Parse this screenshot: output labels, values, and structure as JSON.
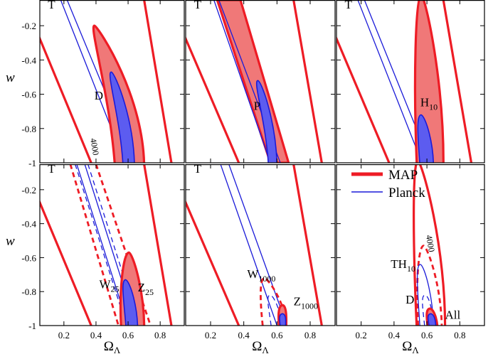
{
  "chart_data": {
    "type": "contour-grid",
    "xlabel": "Ω",
    "xlabel_sub": "Λ",
    "ylabel": "w",
    "xlim": [
      0.05,
      0.95
    ],
    "ylim": [
      -1.0,
      -0.05
    ],
    "x_ticks": [
      0.2,
      0.4,
      0.6,
      0.8
    ],
    "x_tick_labels": [
      "0.2",
      "0.4",
      "0.6",
      "0.8"
    ],
    "y_ticks": [
      -1.0,
      -0.8,
      -0.6,
      -0.4,
      -0.2
    ],
    "y_tick_labels": [
      "-1",
      "-0.8",
      "-0.6",
      "-0.4",
      "-0.2"
    ],
    "colors": {
      "map": "#ee1c25",
      "map_fill": "#f07878",
      "planck": "#1a1ad8",
      "planck_fill": "#5c5cf0"
    },
    "legend": {
      "position": "top-left of bottom-right panel",
      "entries": [
        {
          "label": "MAP",
          "series": "map"
        },
        {
          "label": "Planck",
          "series": "planck"
        }
      ]
    },
    "panels": [
      {
        "id": "D",
        "labels": [
          {
            "text": "T",
            "sub": "",
            "x": 0.1,
            "y": -0.1
          },
          {
            "text": "D",
            "sub": "",
            "x": 0.39,
            "y": -0.63
          },
          {
            "text": "4000",
            "sub": "",
            "x": 0.365,
            "y": -0.86,
            "rotate": 80
          }
        ],
        "contours": [
          {
            "series": "map",
            "style": "band",
            "x_at_top": [
              -0.05,
              0.7
            ],
            "x_at_bottom": [
              0.37,
              0.87
            ]
          },
          {
            "series": "planck",
            "style": "band-thin",
            "x_at_top": [
              0.18,
              0.22
            ],
            "x_at_bottom": [
              0.58,
              0.64
            ]
          },
          {
            "series": "map",
            "style": "ellipse-filled",
            "w_top": -0.2,
            "x_top": 0.39,
            "x_at_bottom": [
              0.52,
              0.7
            ]
          },
          {
            "series": "planck",
            "style": "ellipse-filled",
            "w_top": -0.47,
            "x_top": 0.495,
            "x_at_bottom": [
              0.57,
              0.64
            ]
          }
        ]
      },
      {
        "id": "P",
        "labels": [
          {
            "text": "T",
            "sub": "",
            "x": 0.1,
            "y": -0.1
          },
          {
            "text": "P",
            "sub": "",
            "x": 0.46,
            "y": -0.69
          }
        ],
        "contours": [
          {
            "series": "map",
            "style": "band",
            "x_at_top": [
              -0.05,
              0.7
            ],
            "x_at_bottom": [
              0.37,
              0.87
            ]
          },
          {
            "series": "map",
            "style": "band-filled",
            "x_at_top": [
              0.24,
              0.38
            ],
            "x_at_bottom": [
              0.56,
              0.67
            ]
          },
          {
            "series": "planck",
            "style": "band-thin",
            "x_at_top": [
              0.22,
              0.25
            ],
            "x_at_bottom": [
              0.56,
              0.62
            ]
          },
          {
            "series": "planck",
            "style": "ellipse-filled",
            "w_top": -0.52,
            "x_top": 0.485,
            "x_at_bottom": [
              0.55,
              0.6
            ]
          }
        ]
      },
      {
        "id": "H10",
        "labels": [
          {
            "text": "T",
            "sub": "",
            "x": 0.1,
            "y": -0.1
          },
          {
            "text": "H",
            "sub": "10",
            "x": 0.56,
            "y": -0.67
          }
        ],
        "contours": [
          {
            "series": "map",
            "style": "band",
            "x_at_top": [
              -0.05,
              0.7
            ],
            "x_at_bottom": [
              0.37,
              0.87
            ]
          },
          {
            "series": "planck",
            "style": "band-thin",
            "x_at_top": [
              0.18,
              0.22
            ],
            "x_at_bottom": [
              0.57,
              0.62
            ]
          },
          {
            "series": "map",
            "style": "ellipse-filled",
            "w_top": -0.02,
            "x_top": 0.565,
            "x_at_bottom": [
              0.54,
              0.7
            ]
          },
          {
            "series": "planck",
            "style": "ellipse-filled",
            "w_top": -0.72,
            "x_top": 0.565,
            "x_at_bottom": [
              0.56,
              0.64
            ]
          }
        ]
      },
      {
        "id": "Z25",
        "labels": [
          {
            "text": "T",
            "sub": "",
            "x": 0.1,
            "y": -0.1
          },
          {
            "text": "W",
            "sub": "25",
            "x": 0.42,
            "y": -0.78
          },
          {
            "text": "Z",
            "sub": "25",
            "x": 0.66,
            "y": -0.8
          }
        ],
        "contours": [
          {
            "series": "map",
            "style": "band",
            "x_at_top": [
              -0.05,
              0.7
            ],
            "x_at_bottom": [
              0.37,
              0.87
            ]
          },
          {
            "series": "map",
            "style": "band-dashed",
            "x_at_top": [
              0.24,
              0.4
            ],
            "x_at_bottom": [
              0.54,
              0.74
            ]
          },
          {
            "series": "planck",
            "style": "band-thin",
            "x_at_top": [
              0.28,
              0.33
            ],
            "x_at_bottom": [
              0.6,
              0.65
            ]
          },
          {
            "series": "planck",
            "style": "band-thin-dashed",
            "x_at_top": [
              0.27,
              0.35
            ],
            "x_at_bottom": [
              0.59,
              0.67
            ]
          },
          {
            "series": "map",
            "style": "ellipse-filled",
            "w_top": -0.57,
            "x_top": 0.605,
            "x_at_bottom": [
              0.56,
              0.7
            ]
          },
          {
            "series": "planck",
            "style": "ellipse-filled",
            "w_top": -0.73,
            "x_top": 0.585,
            "x_at_bottom": [
              0.59,
              0.66
            ]
          }
        ]
      },
      {
        "id": "Z1000",
        "labels": [
          {
            "text": "T",
            "sub": "",
            "x": 0.1,
            "y": -0.1
          },
          {
            "text": "W",
            "sub": "1000",
            "x": 0.42,
            "y": -0.72
          },
          {
            "text": "Z",
            "sub": "1000",
            "x": 0.7,
            "y": -0.88
          }
        ],
        "contours": [
          {
            "series": "map",
            "style": "band",
            "x_at_top": [
              -0.05,
              0.7
            ],
            "x_at_bottom": [
              0.37,
              0.87
            ]
          },
          {
            "series": "planck",
            "style": "band-thin",
            "x_at_top": [
              0.26,
              0.31
            ],
            "x_at_bottom": [
              0.6,
              0.66
            ]
          },
          {
            "series": "map",
            "style": "ellipse-dashed",
            "w_top": -0.72,
            "x_top": 0.525,
            "x_at_bottom": [
              0.52,
              0.66
            ]
          },
          {
            "series": "planck",
            "style": "ellipse-dashed",
            "w_top": -0.82,
            "x_top": 0.56,
            "x_at_bottom": [
              0.57,
              0.63
            ]
          },
          {
            "series": "map",
            "style": "ellipse-filled",
            "w_top": -0.88,
            "x_top": 0.635,
            "x_at_bottom": [
              0.615,
              0.655
            ]
          },
          {
            "series": "planck",
            "style": "ellipse-filled",
            "w_top": -0.93,
            "x_top": 0.635,
            "x_at_bottom": [
              0.625,
              0.65
            ]
          }
        ]
      },
      {
        "id": "All",
        "labels": [
          {
            "text": "TH",
            "sub": "10",
            "x": 0.38,
            "y": -0.66
          },
          {
            "text": "D",
            "sub": "",
            "x": 0.47,
            "y": -0.87
          },
          {
            "text": "All",
            "sub": "",
            "x": 0.71,
            "y": -0.96
          },
          {
            "text": "4000",
            "sub": "",
            "x": 0.595,
            "y": -0.47,
            "rotate": 80
          }
        ],
        "contours": [
          {
            "series": "map",
            "style": "ellipse",
            "w_top": -0.03,
            "x_top": 0.545,
            "x_at_bottom": [
              0.54,
              0.71
            ]
          },
          {
            "series": "map",
            "style": "ellipse-dashed",
            "w_top": -0.53,
            "x_top": 0.58,
            "x_at_bottom": [
              0.55,
              0.69
            ]
          },
          {
            "series": "planck",
            "style": "ellipse",
            "w_top": -0.64,
            "x_top": 0.56,
            "x_at_bottom": [
              0.56,
              0.64
            ]
          },
          {
            "series": "planck",
            "style": "ellipse-dashed",
            "w_top": -0.82,
            "x_top": 0.59,
            "x_at_bottom": [
              0.59,
              0.64
            ]
          },
          {
            "series": "map",
            "style": "ellipse-filled",
            "w_top": -0.9,
            "x_top": 0.62,
            "x_at_bottom": [
              0.61,
              0.665
            ]
          },
          {
            "series": "planck",
            "style": "ellipse-filled",
            "w_top": -0.93,
            "x_top": 0.625,
            "x_at_bottom": [
              0.62,
              0.655
            ]
          }
        ]
      }
    ]
  }
}
